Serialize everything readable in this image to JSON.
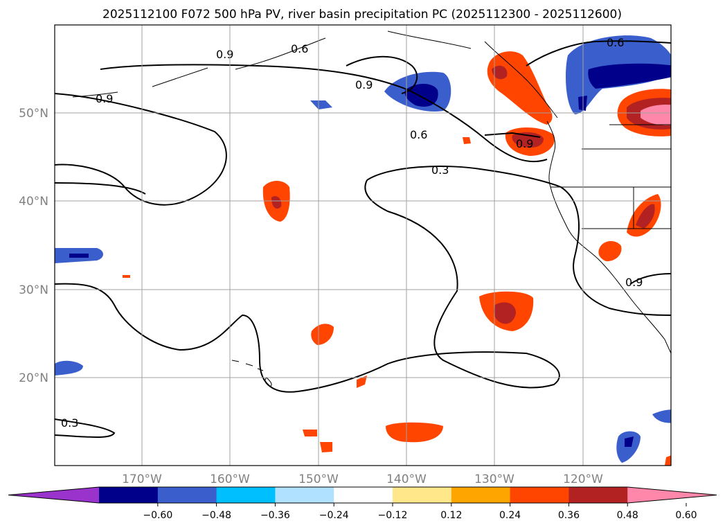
{
  "title": "2025112100 F072 500 hPa PV, river basin precipitation PC (2025112300 - 2025112600)",
  "lat_labels": [
    "50°N",
    "40°N",
    "30°N",
    "20°N"
  ],
  "lon_labels": [
    "170°W",
    "160°W",
    "150°W",
    "140°W",
    "130°W",
    "120°W"
  ],
  "contour_labels": [
    "0.9",
    "0.6",
    "0.9",
    "0.6",
    "0.9",
    "0.6",
    "0.3",
    "0.9",
    "0.3",
    "0.9"
  ],
  "colorbar": {
    "ticks": [
      "−0.60",
      "−0.48",
      "−0.36",
      "−0.24",
      "−0.12",
      "0.12",
      "0.24",
      "0.36",
      "0.48",
      "0.60"
    ],
    "colors": [
      "#9933cc",
      "#00008b",
      "#3a5fcd",
      "#00bfff",
      "#b0e2ff",
      "#ffffff",
      "#ffe78a",
      "#ffa500",
      "#ff4500",
      "#b22222",
      "#ff88aa"
    ],
    "extend": "both"
  },
  "map": {
    "projection": "cylindrical",
    "lon_range": [
      -180,
      -110
    ],
    "lat_range": [
      10,
      60
    ],
    "gridlines": true,
    "contour_field": "500 hPa PV",
    "contour_levels": [
      0.3,
      0.6,
      0.9
    ],
    "shading_field": "river basin precipitation PC"
  }
}
